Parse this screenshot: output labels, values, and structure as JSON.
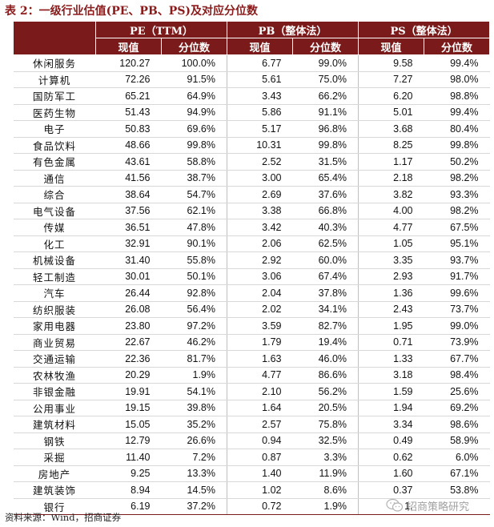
{
  "caption": "表 2：一级行业估值(PE、PB、PS)及对应分位数",
  "headers": {
    "group_pe": "PE（TTM）",
    "group_pb": "PB（整体法）",
    "group_ps": "PS（整体法）",
    "current": "现值",
    "percentile": "分位数"
  },
  "rows": [
    {
      "name": "休闲服务",
      "pe": "120.27",
      "pe_pct": "100.0%",
      "pb": "6.77",
      "pb_pct": "99.0%",
      "ps": "9.58",
      "ps_pct": "99.4%"
    },
    {
      "name": "计算机",
      "pe": "72.26",
      "pe_pct": "91.5%",
      "pb": "5.61",
      "pb_pct": "75.0%",
      "ps": "7.27",
      "ps_pct": "98.0%"
    },
    {
      "name": "国防军工",
      "pe": "65.21",
      "pe_pct": "64.9%",
      "pb": "3.43",
      "pb_pct": "66.2%",
      "ps": "6.20",
      "ps_pct": "98.8%"
    },
    {
      "name": "医药生物",
      "pe": "51.43",
      "pe_pct": "94.9%",
      "pb": "5.86",
      "pb_pct": "91.1%",
      "ps": "5.01",
      "ps_pct": "99.4%"
    },
    {
      "name": "电子",
      "pe": "50.83",
      "pe_pct": "69.6%",
      "pb": "5.17",
      "pb_pct": "96.8%",
      "ps": "3.68",
      "ps_pct": "80.4%"
    },
    {
      "name": "食品饮料",
      "pe": "48.66",
      "pe_pct": "99.8%",
      "pb": "10.31",
      "pb_pct": "99.8%",
      "ps": "8.25",
      "ps_pct": "99.8%"
    },
    {
      "name": "有色金属",
      "pe": "43.61",
      "pe_pct": "58.8%",
      "pb": "2.52",
      "pb_pct": "31.5%",
      "ps": "1.17",
      "ps_pct": "50.2%"
    },
    {
      "name": "通信",
      "pe": "41.56",
      "pe_pct": "38.7%",
      "pb": "3.00",
      "pb_pct": "65.4%",
      "ps": "2.18",
      "ps_pct": "98.2%"
    },
    {
      "name": "综合",
      "pe": "38.64",
      "pe_pct": "54.7%",
      "pb": "2.69",
      "pb_pct": "37.6%",
      "ps": "3.82",
      "ps_pct": "93.3%"
    },
    {
      "name": "电气设备",
      "pe": "37.56",
      "pe_pct": "62.1%",
      "pb": "3.38",
      "pb_pct": "66.8%",
      "ps": "4.00",
      "ps_pct": "98.2%"
    },
    {
      "name": "传媒",
      "pe": "36.51",
      "pe_pct": "47.8%",
      "pb": "3.42",
      "pb_pct": "40.3%",
      "ps": "4.77",
      "ps_pct": "67.5%"
    },
    {
      "name": "化工",
      "pe": "32.91",
      "pe_pct": "90.1%",
      "pb": "2.06",
      "pb_pct": "62.5%",
      "ps": "1.05",
      "ps_pct": "95.1%"
    },
    {
      "name": "机械设备",
      "pe": "31.40",
      "pe_pct": "55.8%",
      "pb": "2.92",
      "pb_pct": "60.0%",
      "ps": "3.35",
      "ps_pct": "93.7%"
    },
    {
      "name": "轻工制造",
      "pe": "30.01",
      "pe_pct": "50.1%",
      "pb": "3.06",
      "pb_pct": "67.4%",
      "ps": "2.93",
      "ps_pct": "91.7%"
    },
    {
      "name": "汽车",
      "pe": "26.44",
      "pe_pct": "92.8%",
      "pb": "2.04",
      "pb_pct": "37.8%",
      "ps": "1.36",
      "ps_pct": "99.6%"
    },
    {
      "name": "纺织服装",
      "pe": "26.08",
      "pe_pct": "56.4%",
      "pb": "2.02",
      "pb_pct": "34.1%",
      "ps": "2.43",
      "ps_pct": "73.7%"
    },
    {
      "name": "家用电器",
      "pe": "23.80",
      "pe_pct": "97.2%",
      "pb": "3.59",
      "pb_pct": "82.7%",
      "ps": "1.95",
      "ps_pct": "99.0%"
    },
    {
      "name": "商业贸易",
      "pe": "22.67",
      "pe_pct": "46.2%",
      "pb": "1.79",
      "pb_pct": "19.4%",
      "ps": "0.71",
      "ps_pct": "73.9%"
    },
    {
      "name": "交通运输",
      "pe": "22.36",
      "pe_pct": "81.7%",
      "pb": "1.63",
      "pb_pct": "46.0%",
      "ps": "1.33",
      "ps_pct": "67.7%"
    },
    {
      "name": "农林牧渔",
      "pe": "20.29",
      "pe_pct": "1.9%",
      "pb": "4.77",
      "pb_pct": "86.6%",
      "ps": "3.18",
      "ps_pct": "98.4%"
    },
    {
      "name": "非银金融",
      "pe": "19.91",
      "pe_pct": "54.1%",
      "pb": "2.10",
      "pb_pct": "56.2%",
      "ps": "1.59",
      "ps_pct": "25.6%"
    },
    {
      "name": "公用事业",
      "pe": "19.15",
      "pe_pct": "39.8%",
      "pb": "1.64",
      "pb_pct": "20.5%",
      "ps": "1.94",
      "ps_pct": "69.2%"
    },
    {
      "name": "建筑材料",
      "pe": "15.05",
      "pe_pct": "35.2%",
      "pb": "2.57",
      "pb_pct": "75.8%",
      "ps": "3.34",
      "ps_pct": "98.6%"
    },
    {
      "name": "钢铁",
      "pe": "12.79",
      "pe_pct": "26.6%",
      "pb": "0.94",
      "pb_pct": "32.5%",
      "ps": "0.49",
      "ps_pct": "58.9%"
    },
    {
      "name": "采掘",
      "pe": "11.40",
      "pe_pct": "7.2%",
      "pb": "0.87",
      "pb_pct": "3.3%",
      "ps": "0.62",
      "ps_pct": "6.0%"
    },
    {
      "name": "房地产",
      "pe": "9.25",
      "pe_pct": "13.3%",
      "pb": "1.40",
      "pb_pct": "11.9%",
      "ps": "1.60",
      "ps_pct": "67.1%"
    },
    {
      "name": "建筑装饰",
      "pe": "8.94",
      "pe_pct": "14.5%",
      "pb": "1.02",
      "pb_pct": "8.6%",
      "ps": "0.37",
      "ps_pct": "53.8%"
    },
    {
      "name": "银行",
      "pe": "6.19",
      "pe_pct": "37.2%",
      "pb": "0.72",
      "pb_pct": "1.9%",
      "ps": "1.",
      "ps_pct": ""
    }
  ],
  "source": "资料来源：Wind，招商证券",
  "watermark": {
    "text": "招商策略研究",
    "icon": "wechat-icon"
  },
  "colors": {
    "header_bg": "#7a1a1a",
    "caption": "#8b1a1a"
  }
}
